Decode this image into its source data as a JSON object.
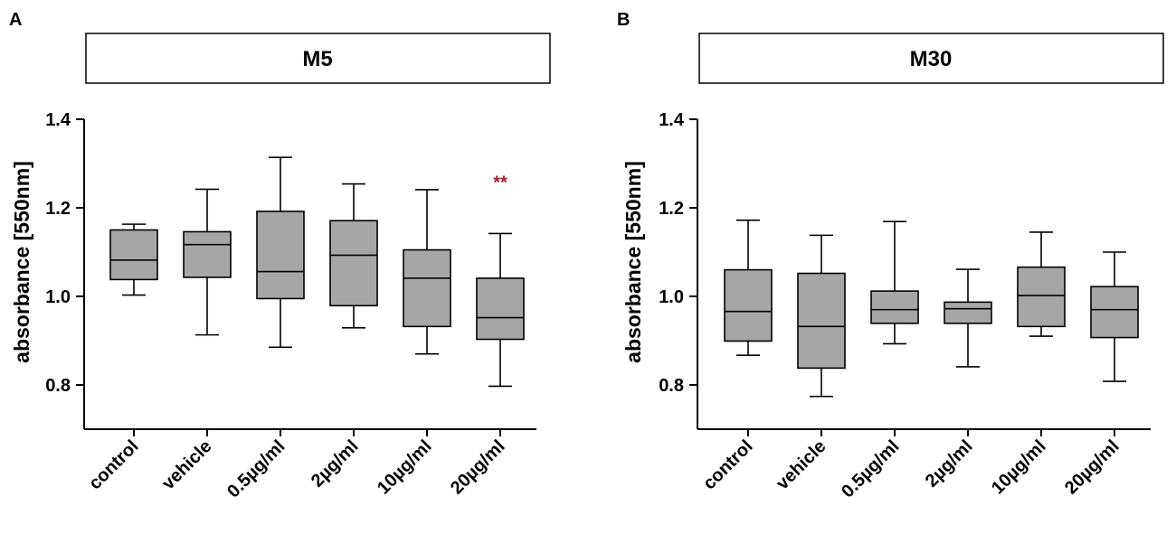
{
  "colors": {
    "box_fill": "#a6a6a8",
    "stroke": "#000000",
    "significance": "#a8222a"
  },
  "chart_data": [
    {
      "panel_label": "A",
      "type": "boxplot",
      "title": "M5",
      "ylabel": "absorbance [550nm]",
      "ylim": [
        0.7,
        1.4
      ],
      "yticks": [
        0.8,
        1.0,
        1.2,
        1.4
      ],
      "ytick_labels": [
        "0.8",
        "1.0",
        "1.2",
        "1.4"
      ],
      "categories": [
        "control",
        "vehicle",
        "0.5µg/ml",
        "2µg/ml",
        "10µg/ml",
        "20µg/ml"
      ],
      "boxes": [
        {
          "min": 1.003,
          "q1": 1.038,
          "median": 1.082,
          "q3": 1.15,
          "max": 1.163
        },
        {
          "min": 0.913,
          "q1": 1.043,
          "median": 1.117,
          "q3": 1.146,
          "max": 1.242
        },
        {
          "min": 0.885,
          "q1": 0.995,
          "median": 1.056,
          "q3": 1.192,
          "max": 1.314
        },
        {
          "min": 0.929,
          "q1": 0.979,
          "median": 1.093,
          "q3": 1.171,
          "max": 1.254
        },
        {
          "min": 0.87,
          "q1": 0.932,
          "median": 1.041,
          "q3": 1.105,
          "max": 1.241
        },
        {
          "min": 0.797,
          "q1": 0.903,
          "median": 0.952,
          "q3": 1.041,
          "max": 1.142
        }
      ],
      "annotations": [
        {
          "category_index": 5,
          "text": "**",
          "y": 1.26
        }
      ]
    },
    {
      "panel_label": "B",
      "type": "boxplot",
      "title": "M30",
      "ylabel": "absorbance [550nm]",
      "ylim": [
        0.7,
        1.4
      ],
      "yticks": [
        0.8,
        1.0,
        1.2,
        1.4
      ],
      "ytick_labels": [
        "0.8",
        "1.0",
        "1.2",
        "1.4"
      ],
      "categories": [
        "control",
        "vehicle",
        "0.5µg/ml",
        "2µg/ml",
        "10µg/ml",
        "20µg/ml"
      ],
      "boxes": [
        {
          "min": 0.867,
          "q1": 0.899,
          "median": 0.966,
          "q3": 1.06,
          "max": 1.172
        },
        {
          "min": 0.774,
          "q1": 0.838,
          "median": 0.932,
          "q3": 1.052,
          "max": 1.138
        },
        {
          "min": 0.893,
          "q1": 0.939,
          "median": 0.97,
          "q3": 1.012,
          "max": 1.169
        },
        {
          "min": 0.841,
          "q1": 0.939,
          "median": 0.972,
          "q3": 0.987,
          "max": 1.061
        },
        {
          "min": 0.91,
          "q1": 0.932,
          "median": 1.002,
          "q3": 1.066,
          "max": 1.145
        },
        {
          "min": 0.808,
          "q1": 0.907,
          "median": 0.97,
          "q3": 1.022,
          "max": 1.1
        }
      ],
      "annotations": []
    }
  ]
}
